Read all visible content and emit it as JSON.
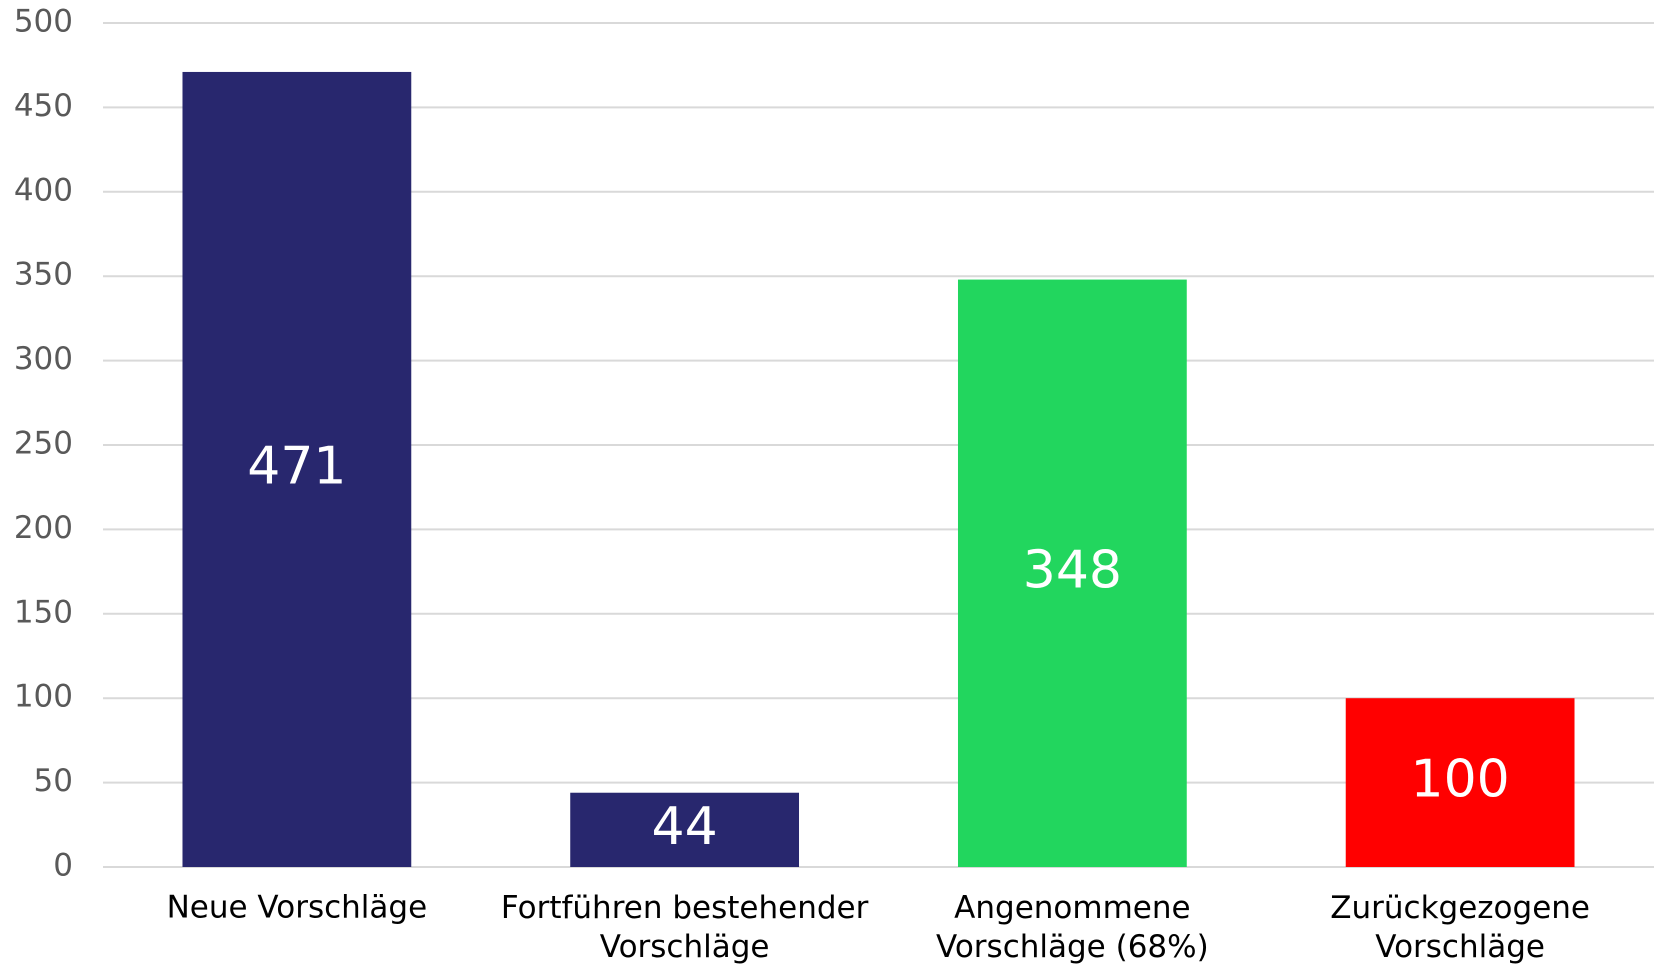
{
  "chart_data": {
    "type": "bar",
    "categories": [
      "Neue Vorschläge",
      "Fortführen bestehender\nVorschläge",
      "Angenommene\nVorschläge (68%)",
      "Zurückgezogene\nVorschläge"
    ],
    "values": [
      471,
      44,
      348,
      100
    ],
    "colors": [
      "#28276e",
      "#28276e",
      "#22d65e",
      "#ff0000"
    ],
    "ylim": [
      0,
      500
    ],
    "yticks": [
      0,
      50,
      100,
      150,
      200,
      250,
      300,
      350,
      400,
      450,
      500
    ],
    "grid": true
  }
}
